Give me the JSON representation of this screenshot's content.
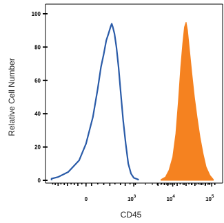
{
  "chart_data": {
    "type": "area",
    "xlabel": "CD45",
    "ylabel": "Relative Cell Number",
    "ylim": [
      0,
      100
    ],
    "x_scale": "biexponential",
    "x_ticks": [
      {
        "value": 0,
        "label": "0"
      },
      {
        "value": 1000,
        "base": "10",
        "exp": "3"
      },
      {
        "value": 10000,
        "base": "10",
        "exp": "4"
      },
      {
        "value": 100000,
        "base": "10",
        "exp": "5"
      }
    ],
    "y_ticks": [
      0,
      20,
      40,
      60,
      80,
      100
    ],
    "series": [
      {
        "style": "outline",
        "color": "#2a5ba8",
        "points": [
          [
            -450,
            1
          ],
          [
            -300,
            2
          ],
          [
            -150,
            5
          ],
          [
            -50,
            12
          ],
          [
            0,
            22
          ],
          [
            50,
            38
          ],
          [
            90,
            55
          ],
          [
            120,
            68
          ],
          [
            150,
            76
          ],
          [
            180,
            84
          ],
          [
            210,
            88
          ],
          [
            240,
            92
          ],
          [
            260,
            94
          ],
          [
            280,
            92
          ],
          [
            310,
            88
          ],
          [
            350,
            80
          ],
          [
            400,
            68
          ],
          [
            460,
            52
          ],
          [
            530,
            36
          ],
          [
            620,
            22
          ],
          [
            720,
            10
          ],
          [
            850,
            4
          ],
          [
            1000,
            1.5
          ],
          [
            1300,
            0.5
          ]
        ]
      },
      {
        "style": "filled",
        "color": "#f58220",
        "points": [
          [
            5000,
            0.5
          ],
          [
            6500,
            2
          ],
          [
            8000,
            6
          ],
          [
            10000,
            14
          ],
          [
            12000,
            28
          ],
          [
            14000,
            48
          ],
          [
            16000,
            68
          ],
          [
            18000,
            82
          ],
          [
            20000,
            92
          ],
          [
            22000,
            95
          ],
          [
            24000,
            90
          ],
          [
            27000,
            78
          ],
          [
            31000,
            64
          ],
          [
            36000,
            50
          ],
          [
            42000,
            38
          ],
          [
            50000,
            26
          ],
          [
            60000,
            16
          ],
          [
            72000,
            8
          ],
          [
            90000,
            3
          ],
          [
            110000,
            0.5
          ]
        ]
      }
    ]
  }
}
